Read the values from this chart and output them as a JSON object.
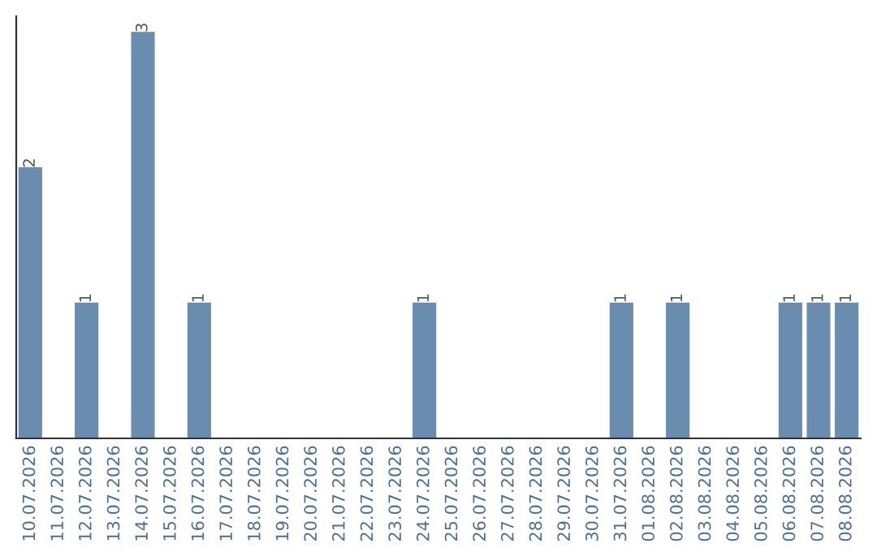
{
  "chart_data": {
    "type": "bar",
    "categories": [
      "10.07.2026",
      "11.07.2026",
      "12.07.2026",
      "13.07.2026",
      "14.07.2026",
      "15.07.2026",
      "16.07.2026",
      "17.07.2026",
      "18.07.2026",
      "19.07.2026",
      "20.07.2026",
      "21.07.2026",
      "22.07.2026",
      "23.07.2026",
      "24.07.2026",
      "25.07.2026",
      "26.07.2026",
      "27.07.2026",
      "28.07.2026",
      "29.07.2026",
      "30.07.2026",
      "31.07.2026",
      "01.08.2026",
      "02.08.2026",
      "03.08.2026",
      "04.08.2026",
      "05.08.2026",
      "06.08.2026",
      "07.08.2026",
      "08.08.2026"
    ],
    "values": [
      2,
      0,
      1,
      0,
      3,
      0,
      1,
      0,
      0,
      0,
      0,
      0,
      0,
      0,
      1,
      0,
      0,
      0,
      0,
      0,
      0,
      1,
      0,
      1,
      0,
      0,
      0,
      1,
      1,
      1
    ],
    "value_labels": [
      "2",
      null,
      "1",
      null,
      "3",
      null,
      "1",
      null,
      null,
      null,
      null,
      null,
      null,
      null,
      "1",
      null,
      null,
      null,
      null,
      null,
      null,
      "1",
      null,
      "1",
      null,
      null,
      null,
      "1",
      "1",
      "1"
    ],
    "color": "#6a8caf",
    "ylim": [
      0,
      3.12
    ],
    "tick_labels": "x",
    "grid": false,
    "legend": false
  }
}
